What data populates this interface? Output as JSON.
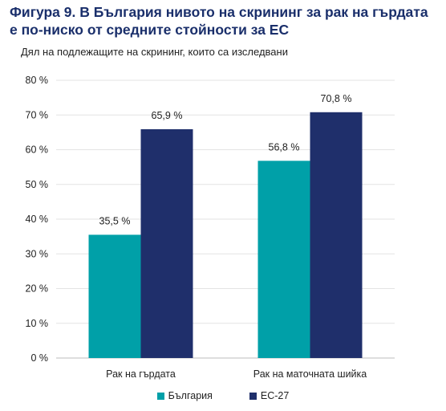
{
  "chart_data": {
    "type": "bar",
    "title": "Фигура 9. В България нивото на скрининг за рак на гърдата е по-ниско от средните стойности за ЕС",
    "subtitle": "Дял на подлежащите на скрининг, които са изследвани",
    "categories": [
      "Рак на гърдата",
      "Рак на маточната шийка"
    ],
    "series": [
      {
        "name": "България",
        "color": "#00a0a8",
        "values": [
          35.5,
          56.8
        ],
        "labels": [
          "35,5 %",
          "56,8 %"
        ]
      },
      {
        "name": "ЕС-27",
        "color": "#1f2f6b",
        "values": [
          65.9,
          70.8
        ],
        "labels": [
          "65,9 %",
          "70,8 %"
        ]
      }
    ],
    "ylim": [
      0,
      80
    ],
    "yticks": [
      0,
      10,
      20,
      30,
      40,
      50,
      60,
      70,
      80
    ],
    "ytick_labels": [
      "0 %",
      "10 %",
      "20 %",
      "30 %",
      "40 %",
      "50 %",
      "60 %",
      "70 %",
      "80 %"
    ],
    "grid": true,
    "legend_position": "bottom"
  }
}
